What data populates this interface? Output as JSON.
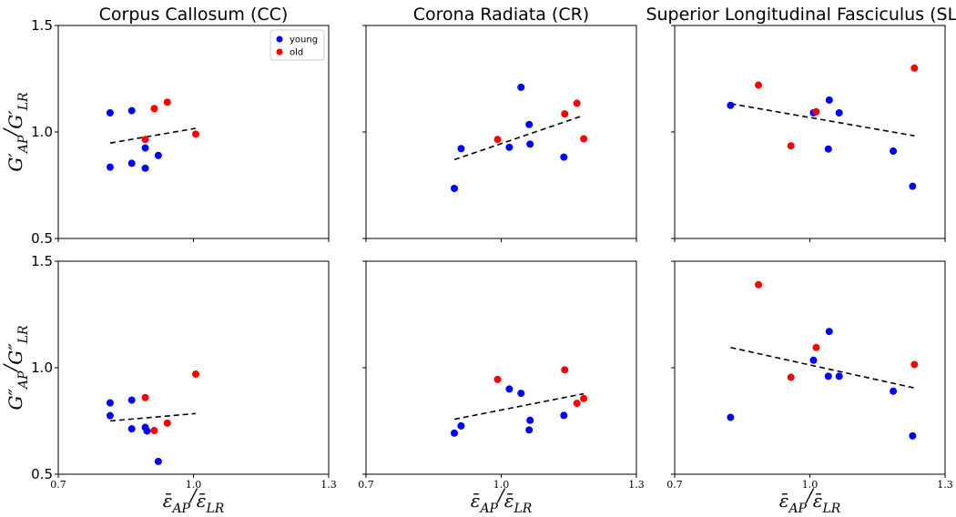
{
  "chart_data": {
    "type": "scatter",
    "x_ticks": [
      0.7,
      1.0,
      1.3
    ],
    "y_ticks": [
      0.5,
      1.0,
      1.5
    ],
    "xlim": [
      0.7,
      1.3
    ],
    "ylim": [
      0.5,
      1.5
    ],
    "xlabel": "ε̄AP/ε̄LR",
    "row_ylabels": [
      "G′AP/G′LR",
      "G″AP/G″LR"
    ],
    "colors": {
      "young": "#0000ff",
      "old": "#ff0000",
      "fit": "#000000"
    },
    "legend": {
      "position": "top-right",
      "entries": [
        {
          "name": "young",
          "color": "#0000ff"
        },
        {
          "name": "old",
          "color": "#ff0000"
        }
      ]
    },
    "panels": [
      {
        "row": 0,
        "col": 0,
        "title": "Corpus Callosum (CC)",
        "series": [
          {
            "name": "young",
            "points": [
              [
                0.815,
                1.09
              ],
              [
                0.863,
                1.1
              ],
              [
                0.815,
                0.835
              ],
              [
                0.863,
                0.853
              ],
              [
                0.893,
                0.925
              ],
              [
                0.893,
                0.83
              ],
              [
                0.922,
                0.89
              ]
            ]
          },
          {
            "name": "old",
            "points": [
              [
                0.893,
                0.965
              ],
              [
                0.913,
                1.11
              ],
              [
                0.942,
                1.14
              ],
              [
                1.005,
                0.99
              ]
            ]
          }
        ],
        "fit": [
          [
            0.815,
            0.948
          ],
          [
            1.005,
            1.017
          ]
        ]
      },
      {
        "row": 0,
        "col": 1,
        "title": "Corona Radiata (CR)",
        "series": [
          {
            "name": "young",
            "points": [
              [
                0.896,
                0.735
              ],
              [
                0.911,
                0.922
              ],
              [
                1.018,
                0.928
              ],
              [
                1.044,
                1.21
              ],
              [
                1.062,
                1.035
              ],
              [
                1.064,
                0.943
              ],
              [
                1.139,
                0.882
              ]
            ]
          },
          {
            "name": "old",
            "points": [
              [
                0.992,
                0.965
              ],
              [
                1.141,
                1.085
              ],
              [
                1.168,
                1.135
              ],
              [
                1.183,
                0.968
              ]
            ]
          }
        ],
        "fit": [
          [
            0.896,
            0.87
          ],
          [
            1.183,
            1.078
          ]
        ]
      },
      {
        "row": 0,
        "col": 2,
        "title": "Superior Longitudinal Fasciculus (SLF)",
        "series": [
          {
            "name": "young",
            "points": [
              [
                0.824,
                1.125
              ],
              [
                1.008,
                1.09
              ],
              [
                1.043,
                1.15
              ],
              [
                1.065,
                1.09
              ],
              [
                1.041,
                0.92
              ],
              [
                1.185,
                0.91
              ],
              [
                1.228,
                0.745
              ]
            ]
          },
          {
            "name": "old",
            "points": [
              [
                0.886,
                1.22
              ],
              [
                0.958,
                0.935
              ],
              [
                1.014,
                1.095
              ],
              [
                1.232,
                1.3
              ]
            ]
          }
        ],
        "fit": [
          [
            0.824,
            1.133
          ],
          [
            1.232,
            0.982
          ]
        ]
      },
      {
        "row": 1,
        "col": 0,
        "title": "",
        "series": [
          {
            "name": "young",
            "points": [
              [
                0.815,
                0.835
              ],
              [
                0.815,
                0.775
              ],
              [
                0.863,
                0.848
              ],
              [
                0.863,
                0.713
              ],
              [
                0.893,
                0.72
              ],
              [
                0.897,
                0.703
              ],
              [
                0.922,
                0.56
              ]
            ]
          },
          {
            "name": "old",
            "points": [
              [
                0.893,
                0.86
              ],
              [
                0.913,
                0.705
              ],
              [
                0.942,
                0.74
              ],
              [
                1.005,
                0.97
              ]
            ]
          }
        ],
        "fit": [
          [
            0.815,
            0.75
          ],
          [
            1.005,
            0.785
          ]
        ]
      },
      {
        "row": 1,
        "col": 1,
        "title": "",
        "series": [
          {
            "name": "young",
            "points": [
              [
                0.896,
                0.693
              ],
              [
                0.911,
                0.727
              ],
              [
                1.018,
                0.9
              ],
              [
                1.044,
                0.88
              ],
              [
                1.062,
                0.708
              ],
              [
                1.064,
                0.753
              ],
              [
                1.139,
                0.776
              ]
            ]
          },
          {
            "name": "old",
            "points": [
              [
                0.992,
                0.945
              ],
              [
                1.141,
                0.99
              ],
              [
                1.168,
                0.833
              ],
              [
                1.183,
                0.855
              ]
            ]
          }
        ],
        "fit": [
          [
            0.896,
            0.758
          ],
          [
            1.183,
            0.878
          ]
        ]
      },
      {
        "row": 1,
        "col": 2,
        "title": "",
        "series": [
          {
            "name": "young",
            "points": [
              [
                0.824,
                0.767
              ],
              [
                1.008,
                1.035
              ],
              [
                1.043,
                1.17
              ],
              [
                1.041,
                0.96
              ],
              [
                1.065,
                0.96
              ],
              [
                1.185,
                0.89
              ],
              [
                1.228,
                0.68
              ]
            ]
          },
          {
            "name": "old",
            "points": [
              [
                0.886,
                1.39
              ],
              [
                0.958,
                0.955
              ],
              [
                1.014,
                1.095
              ],
              [
                1.232,
                1.015
              ]
            ]
          }
        ],
        "fit": [
          [
            0.824,
            1.095
          ],
          [
            1.232,
            0.905
          ]
        ]
      }
    ]
  }
}
